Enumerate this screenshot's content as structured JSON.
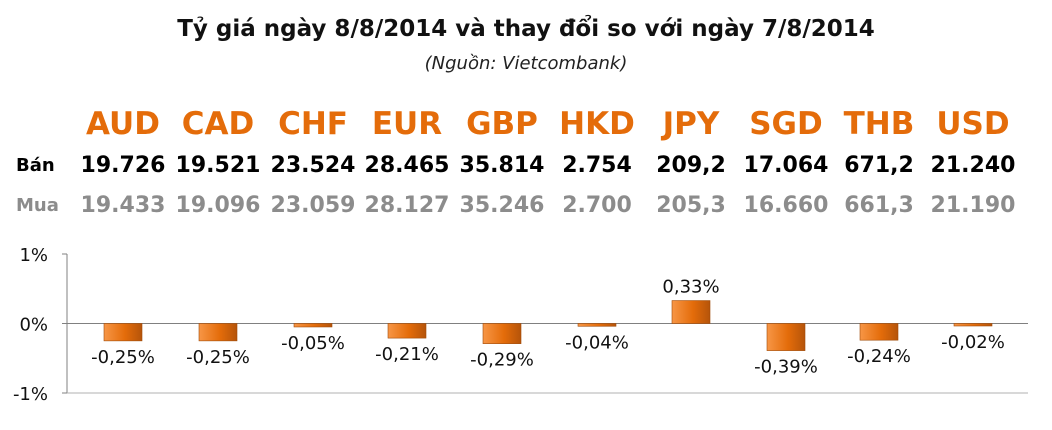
{
  "header": {
    "title": "Tỷ giá ngày 8/8/2014 và thay đổi so với ngày 7/8/2014",
    "subtitle": "(Nguồn: Vietcombank)"
  },
  "rows": {
    "sell_label": "Bán",
    "buy_label": "Mua"
  },
  "currencies": [
    {
      "code": "AUD",
      "sell": "19.726",
      "buy": "19.433"
    },
    {
      "code": "CAD",
      "sell": "19.521",
      "buy": "19.096"
    },
    {
      "code": "CHF",
      "sell": "23.524",
      "buy": "23.059"
    },
    {
      "code": "EUR",
      "sell": "28.465",
      "buy": "28.127"
    },
    {
      "code": "GBP",
      "sell": "35.814",
      "buy": "35.246"
    },
    {
      "code": "HKD",
      "sell": "2.754",
      "buy": "2.700"
    },
    {
      "code": "JPY",
      "sell": "209,2",
      "buy": "205,3"
    },
    {
      "code": "SGD",
      "sell": "17.064",
      "buy": "16.660"
    },
    {
      "code": "THB",
      "sell": "671,2",
      "buy": "661,3"
    },
    {
      "code": "USD",
      "sell": "21.240",
      "buy": "21.190"
    }
  ],
  "colors": {
    "accent": "#e46c0a",
    "bar_light": "#f79646",
    "bar_dark": "#b5540a",
    "buy_text": "#8c8c8c"
  },
  "chart_data": {
    "type": "bar",
    "categories": [
      "AUD",
      "CAD",
      "CHF",
      "EUR",
      "GBP",
      "HKD",
      "JPY",
      "SGD",
      "THB",
      "USD"
    ],
    "values": [
      -0.25,
      -0.25,
      -0.05,
      -0.21,
      -0.29,
      -0.04,
      0.33,
      -0.39,
      -0.24,
      -0.02
    ],
    "data_labels": [
      "-0,25%",
      "-0,25%",
      "-0,05%",
      "-0,21%",
      "-0,29%",
      "-0,04%",
      "0,33%",
      "-0,39%",
      "-0,24%",
      "-0,02%"
    ],
    "ytick_labels": [
      "1%",
      "0%",
      "-1%"
    ],
    "ytick_values": [
      1,
      0,
      -1
    ],
    "ylim": [
      -1,
      1
    ],
    "grid": false
  }
}
